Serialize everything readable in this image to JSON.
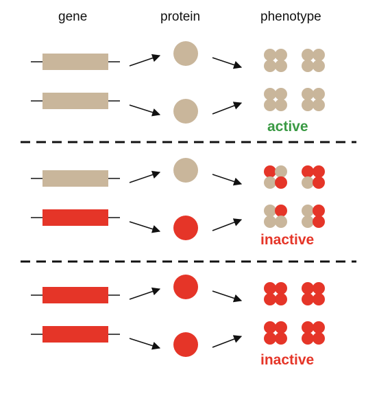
{
  "headers": {
    "gene": "gene",
    "protein": "protein",
    "phenotype": "phenotype"
  },
  "colors": {
    "normal": "#c9b69b",
    "mutant": "#e53528",
    "active_text": "#3a9a44",
    "inactive_text": "#e53528",
    "line": "#111111"
  },
  "panels": [
    {
      "status": "active",
      "status_color": "active_text",
      "alleles": [
        {
          "allele": "normal",
          "protein": "normal",
          "arrows": "up"
        },
        {
          "allele": "normal",
          "protein": "normal",
          "arrows": "down"
        }
      ],
      "phenotype_clusters": [
        [
          "normal",
          "normal",
          "normal",
          "normal"
        ],
        [
          "normal",
          "normal",
          "normal",
          "normal"
        ],
        [
          "normal",
          "normal",
          "normal",
          "normal"
        ],
        [
          "normal",
          "normal",
          "normal",
          "normal"
        ]
      ]
    },
    {
      "status": "inactive",
      "status_color": "inactive_text",
      "alleles": [
        {
          "allele": "normal",
          "protein": "normal",
          "arrows": "up"
        },
        {
          "allele": "mutant",
          "protein": "mutant",
          "arrows": "down"
        }
      ],
      "phenotype_clusters": [
        [
          "mutant",
          "normal",
          "normal",
          "mutant"
        ],
        [
          "mutant",
          "mutant",
          "normal",
          "mutant"
        ],
        [
          "normal",
          "mutant",
          "normal",
          "normal"
        ],
        [
          "normal",
          "mutant",
          "normal",
          "mutant"
        ]
      ]
    },
    {
      "status": "inactive",
      "status_color": "inactive_text",
      "alleles": [
        {
          "allele": "mutant",
          "protein": "mutant",
          "arrows": "up"
        },
        {
          "allele": "mutant",
          "protein": "mutant",
          "arrows": "down"
        }
      ],
      "phenotype_clusters": [
        [
          "mutant",
          "mutant",
          "mutant",
          "mutant"
        ],
        [
          "mutant",
          "mutant",
          "mutant",
          "mutant"
        ],
        [
          "mutant",
          "mutant",
          "mutant",
          "mutant"
        ],
        [
          "mutant",
          "mutant",
          "mutant",
          "mutant"
        ]
      ]
    }
  ]
}
